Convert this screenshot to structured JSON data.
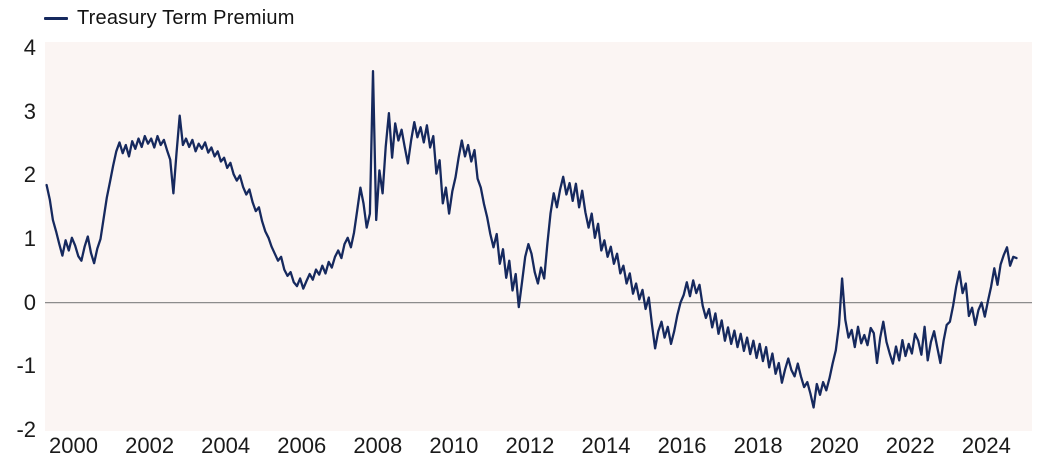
{
  "legend": {
    "label": "Treasury Term Premium"
  },
  "chart_data": {
    "type": "line",
    "title": "",
    "xlabel": "",
    "ylabel": "",
    "legend_position": "top-left",
    "grid": "off",
    "plot_bg_color": "#fbf5f3",
    "zero_line_color": "#8c8c8c",
    "text_color": "#1a1a1a",
    "xlim": [
      1999.25,
      2025.2
    ],
    "ylim": [
      -2.02,
      4.1
    ],
    "x_ticks": [
      2000,
      2002,
      2004,
      2006,
      2008,
      2010,
      2012,
      2014,
      2016,
      2018,
      2020,
      2022,
      2024
    ],
    "y_ticks": [
      4,
      3,
      2,
      1,
      0,
      -1,
      -2
    ],
    "zero_line": 0,
    "series": [
      {
        "name": "Treasury Term Premium",
        "color": "#16295e",
        "frequency": "monthly",
        "start_year": 1999,
        "start_month": 4,
        "values": [
          1.85,
          1.62,
          1.3,
          1.12,
          0.92,
          0.74,
          0.98,
          0.82,
          1.02,
          0.9,
          0.73,
          0.66,
          0.88,
          1.04,
          0.78,
          0.62,
          0.85,
          1.0,
          1.32,
          1.65,
          1.9,
          2.15,
          2.38,
          2.52,
          2.35,
          2.48,
          2.3,
          2.54,
          2.42,
          2.58,
          2.45,
          2.62,
          2.5,
          2.58,
          2.44,
          2.62,
          2.48,
          2.56,
          2.4,
          2.25,
          1.72,
          2.35,
          2.94,
          2.48,
          2.58,
          2.45,
          2.56,
          2.38,
          2.5,
          2.42,
          2.52,
          2.36,
          2.44,
          2.3,
          2.38,
          2.22,
          2.28,
          2.12,
          2.2,
          2.02,
          1.92,
          2.0,
          1.82,
          1.7,
          1.78,
          1.58,
          1.44,
          1.5,
          1.28,
          1.12,
          1.02,
          0.88,
          0.77,
          0.66,
          0.72,
          0.52,
          0.42,
          0.48,
          0.32,
          0.26,
          0.38,
          0.22,
          0.34,
          0.45,
          0.36,
          0.52,
          0.44,
          0.58,
          0.46,
          0.64,
          0.55,
          0.72,
          0.82,
          0.7,
          0.92,
          1.02,
          0.87,
          1.1,
          1.45,
          1.81,
          1.56,
          1.18,
          1.4,
          3.64,
          1.3,
          2.08,
          1.72,
          2.45,
          2.98,
          2.28,
          2.82,
          2.55,
          2.72,
          2.45,
          2.19,
          2.55,
          2.84,
          2.6,
          2.76,
          2.52,
          2.79,
          2.44,
          2.62,
          2.03,
          2.24,
          1.56,
          1.81,
          1.4,
          1.75,
          1.97,
          2.28,
          2.55,
          2.3,
          2.48,
          2.22,
          2.4,
          1.95,
          1.81,
          1.55,
          1.34,
          1.08,
          0.87,
          1.08,
          0.61,
          0.84,
          0.39,
          0.66,
          0.19,
          0.45,
          -0.07,
          0.32,
          0.72,
          0.92,
          0.77,
          0.48,
          0.3,
          0.55,
          0.38,
          0.93,
          1.4,
          1.72,
          1.5,
          1.78,
          1.98,
          1.7,
          1.88,
          1.6,
          1.87,
          1.5,
          1.76,
          1.42,
          1.18,
          1.4,
          1.02,
          1.24,
          0.82,
          0.98,
          0.72,
          0.88,
          0.61,
          0.77,
          0.46,
          0.58,
          0.3,
          0.46,
          0.14,
          0.3,
          0.05,
          0.2,
          -0.1,
          0.08,
          -0.35,
          -0.72,
          -0.45,
          -0.3,
          -0.55,
          -0.38,
          -0.65,
          -0.45,
          -0.2,
          0.0,
          0.12,
          0.32,
          0.1,
          0.35,
          0.15,
          0.28,
          -0.05,
          -0.24,
          -0.1,
          -0.39,
          -0.17,
          -0.49,
          -0.28,
          -0.6,
          -0.39,
          -0.65,
          -0.44,
          -0.7,
          -0.49,
          -0.76,
          -0.55,
          -0.81,
          -0.6,
          -0.87,
          -0.65,
          -0.92,
          -0.7,
          -1.02,
          -0.8,
          -1.12,
          -0.95,
          -1.26,
          -1.05,
          -0.88,
          -1.06,
          -1.16,
          -0.96,
          -1.16,
          -1.33,
          -1.25,
          -1.43,
          -1.65,
          -1.28,
          -1.45,
          -1.25,
          -1.38,
          -1.19,
          -0.96,
          -0.75,
          -0.35,
          0.38,
          -0.27,
          -0.55,
          -0.43,
          -0.7,
          -0.38,
          -0.64,
          -0.51,
          -0.67,
          -0.4,
          -0.48,
          -0.95,
          -0.55,
          -0.3,
          -0.62,
          -0.8,
          -0.96,
          -0.69,
          -0.91,
          -0.59,
          -0.84,
          -0.65,
          -0.8,
          -0.49,
          -0.6,
          -0.82,
          -0.38,
          -0.91,
          -0.62,
          -0.45,
          -0.7,
          -0.95,
          -0.6,
          -0.35,
          -0.3,
          -0.05,
          0.25,
          0.49,
          0.15,
          0.3,
          -0.21,
          -0.08,
          -0.35,
          -0.12,
          0.0,
          -0.22,
          0.02,
          0.25,
          0.54,
          0.28,
          0.6,
          0.75,
          0.87,
          0.58,
          0.72,
          0.7
        ]
      }
    ]
  }
}
